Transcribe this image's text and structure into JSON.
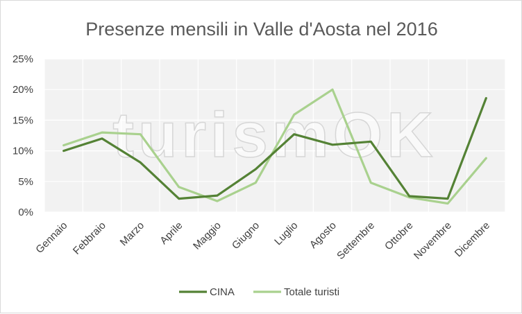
{
  "chart_data": {
    "type": "line",
    "title": "Presenze mensili in Valle d'Aosta nel 2016",
    "categories": [
      "Gennaio",
      "Febbraio",
      "Marzo",
      "Aprile",
      "Maggio",
      "Giugno",
      "Luglio",
      "Agosto",
      "Settembre",
      "Ottobre",
      "Novembre",
      "Dicembre"
    ],
    "series": [
      {
        "name": "CINA",
        "color": "#548235",
        "values": [
          10.0,
          12.0,
          8.1,
          2.2,
          2.7,
          7.0,
          12.7,
          11.0,
          11.5,
          2.6,
          2.2,
          18.6
        ]
      },
      {
        "name": "Totale turisti",
        "color": "#a9d18e",
        "values": [
          10.9,
          13.0,
          12.7,
          4.1,
          1.8,
          4.8,
          15.9,
          20.0,
          4.8,
          2.4,
          1.4,
          8.8
        ]
      }
    ],
    "ylim": [
      0,
      25
    ],
    "yticks": [
      0,
      5,
      10,
      15,
      20,
      25
    ],
    "yformat": "percent",
    "grid": true,
    "legend": "bottom"
  },
  "watermark": "turismOK",
  "colors": {
    "plot_background": "#f2f2f2",
    "grid": "#ffffff",
    "text": "#404040",
    "title": "#595959"
  }
}
